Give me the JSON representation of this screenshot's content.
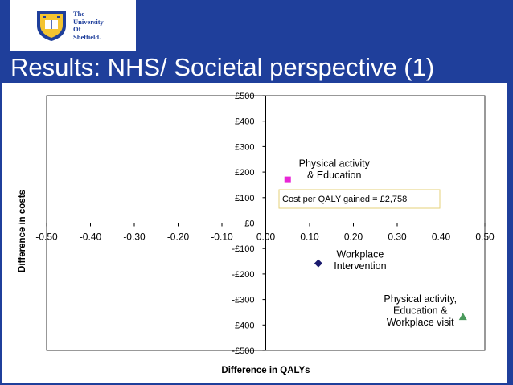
{
  "logo": {
    "lines": [
      "The",
      "University",
      "Of",
      "Sheffield."
    ]
  },
  "slide_title": "Results: NHS/ Societal perspective (1)",
  "chart_data": {
    "type": "scatter",
    "title": "",
    "xlabel": "Difference in QALYs",
    "ylabel": "Difference in costs",
    "xlim": [
      -0.5,
      0.5
    ],
    "ylim": [
      -500,
      500
    ],
    "x_ticks": [
      -0.5,
      -0.4,
      -0.3,
      -0.2,
      -0.1,
      0.0,
      0.1,
      0.2,
      0.3,
      0.4,
      0.5
    ],
    "x_tick_labels": [
      "-0.50",
      "-0.40",
      "-0.30",
      "-0.20",
      "-0.10",
      "0.00",
      "0.10",
      "0.20",
      "0.30",
      "0.40",
      "0.50"
    ],
    "y_ticks": [
      500,
      400,
      300,
      200,
      100,
      0,
      -100,
      -200,
      -300,
      -400,
      -500
    ],
    "y_tick_labels": [
      "£500",
      "£400",
      "£300",
      "£200",
      "£100",
      "£0",
      "-£100",
      "-£200",
      "-£300",
      "-£400",
      "-£500"
    ],
    "grid": false,
    "series": [
      {
        "name": "Physical activity & Education",
        "label_lines": [
          "Physical activity",
          "& Education"
        ],
        "x": 0.05,
        "y": 170,
        "marker": "square",
        "color": "#e826d6"
      },
      {
        "name": "Workplace Intervention",
        "label_lines": [
          "Workplace",
          "Intervention"
        ],
        "x": 0.12,
        "y": -158,
        "marker": "diamond",
        "color": "#1a1a6e"
      },
      {
        "name": "Physical activity, Education & Workplace visit",
        "label_lines": [
          "Physical activity,",
          "Education &",
          "Workplace visit"
        ],
        "x": 0.45,
        "y": -368,
        "marker": "triangle",
        "color": "#4a9a5c"
      }
    ],
    "annotation": "Cost per QALY gained = £2,758"
  }
}
